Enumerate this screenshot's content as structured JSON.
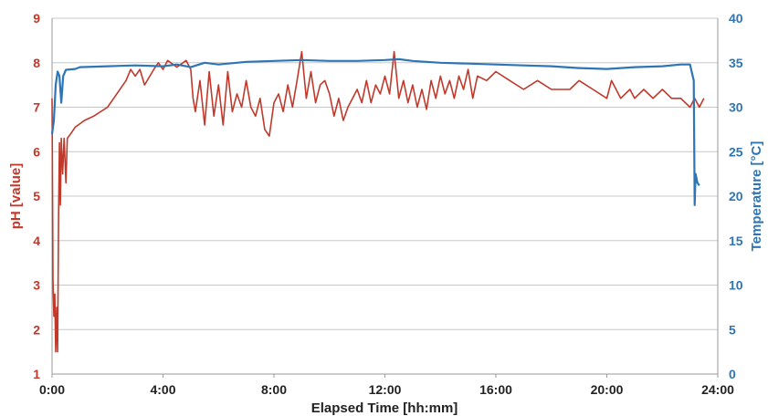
{
  "chart_data": {
    "type": "line",
    "title": "",
    "xlabel": "Elapsed Time [hh:mm]",
    "ylabel_left": "pH [value]",
    "ylabel_right": "Temperature [°C]",
    "x_unit": "hh:mm",
    "xlim": [
      "0:00",
      "24:00"
    ],
    "ylim_left": [
      1,
      9
    ],
    "ylim_right": [
      0,
      40
    ],
    "x_ticks": [
      "0:00",
      "4:00",
      "8:00",
      "12:00",
      "16:00",
      "20:00",
      "24:00"
    ],
    "y_ticks_left": [
      "1",
      "2",
      "3",
      "4",
      "5",
      "6",
      "7",
      "8",
      "9"
    ],
    "y_ticks_right": [
      "0",
      "5",
      "10",
      "15",
      "20",
      "25",
      "30",
      "35",
      "40"
    ],
    "grid": true,
    "legend": "none",
    "colors": {
      "ph": "#c0392b",
      "temperature": "#2e75b6"
    },
    "series": [
      {
        "axis": "left",
        "color": "#c0392b",
        "points": [
          [
            "0:00",
            7.2
          ],
          [
            "0:02",
            3.1
          ],
          [
            "0:04",
            2.3
          ],
          [
            "0:06",
            2.8
          ],
          [
            "0:08",
            1.5
          ],
          [
            "0:10",
            2.5
          ],
          [
            "0:12",
            1.5
          ],
          [
            "0:14",
            4.5
          ],
          [
            "0:16",
            6.2
          ],
          [
            "0:18",
            4.8
          ],
          [
            "0:20",
            6.3
          ],
          [
            "0:23",
            5.5
          ],
          [
            "0:26",
            6.3
          ],
          [
            "0:30",
            5.3
          ],
          [
            "0:33",
            6.3
          ],
          [
            "0:40",
            6.4
          ],
          [
            "0:50",
            6.55
          ],
          [
            "1:10",
            6.7
          ],
          [
            "1:30",
            6.8
          ],
          [
            "2:00",
            7.0
          ],
          [
            "2:20",
            7.3
          ],
          [
            "2:40",
            7.6
          ],
          [
            "2:50",
            7.85
          ],
          [
            "3:00",
            7.7
          ],
          [
            "3:10",
            7.85
          ],
          [
            "3:20",
            7.5
          ],
          [
            "3:40",
            7.85
          ],
          [
            "3:50",
            8.0
          ],
          [
            "4:00",
            7.85
          ],
          [
            "4:10",
            8.05
          ],
          [
            "4:30",
            7.9
          ],
          [
            "4:50",
            8.05
          ],
          [
            "5:00",
            7.85
          ],
          [
            "5:05",
            7.2
          ],
          [
            "5:10",
            6.9
          ],
          [
            "5:20",
            7.6
          ],
          [
            "5:30",
            6.6
          ],
          [
            "5:40",
            7.8
          ],
          [
            "5:50",
            6.8
          ],
          [
            "6:00",
            7.5
          ],
          [
            "6:10",
            6.6
          ],
          [
            "6:20",
            7.8
          ],
          [
            "6:30",
            6.9
          ],
          [
            "6:40",
            7.3
          ],
          [
            "6:50",
            7.0
          ],
          [
            "7:00",
            7.6
          ],
          [
            "7:10",
            7.0
          ],
          [
            "7:20",
            6.8
          ],
          [
            "7:30",
            7.2
          ],
          [
            "7:40",
            6.5
          ],
          [
            "7:50",
            6.35
          ],
          [
            "8:00",
            7.1
          ],
          [
            "8:10",
            7.3
          ],
          [
            "8:20",
            6.9
          ],
          [
            "8:30",
            7.5
          ],
          [
            "8:40",
            7.0
          ],
          [
            "8:50",
            7.6
          ],
          [
            "9:00",
            8.25
          ],
          [
            "9:10",
            7.2
          ],
          [
            "9:20",
            7.8
          ],
          [
            "9:30",
            7.1
          ],
          [
            "9:40",
            7.5
          ],
          [
            "9:50",
            7.6
          ],
          [
            "10:00",
            7.3
          ],
          [
            "10:10",
            6.8
          ],
          [
            "10:20",
            7.2
          ],
          [
            "10:30",
            6.7
          ],
          [
            "10:40",
            7.0
          ],
          [
            "10:50",
            7.2
          ],
          [
            "11:00",
            7.4
          ],
          [
            "11:10",
            7.1
          ],
          [
            "11:20",
            7.6
          ],
          [
            "11:30",
            7.1
          ],
          [
            "11:40",
            7.5
          ],
          [
            "11:50",
            7.3
          ],
          [
            "12:00",
            7.7
          ],
          [
            "12:10",
            7.3
          ],
          [
            "12:20",
            8.25
          ],
          [
            "12:30",
            7.2
          ],
          [
            "12:40",
            7.6
          ],
          [
            "12:50",
            7.1
          ],
          [
            "13:00",
            7.5
          ],
          [
            "13:10",
            7.0
          ],
          [
            "13:20",
            7.4
          ],
          [
            "13:30",
            6.95
          ],
          [
            "13:40",
            7.6
          ],
          [
            "13:50",
            7.2
          ],
          [
            "14:00",
            7.7
          ],
          [
            "14:10",
            7.3
          ],
          [
            "14:20",
            7.6
          ],
          [
            "14:30",
            7.2
          ],
          [
            "14:40",
            7.7
          ],
          [
            "14:50",
            7.4
          ],
          [
            "15:00",
            7.85
          ],
          [
            "15:10",
            7.2
          ],
          [
            "15:20",
            7.7
          ],
          [
            "15:40",
            7.6
          ],
          [
            "16:00",
            7.8
          ],
          [
            "16:30",
            7.6
          ],
          [
            "17:00",
            7.4
          ],
          [
            "17:30",
            7.6
          ],
          [
            "18:00",
            7.4
          ],
          [
            "18:40",
            7.4
          ],
          [
            "19:00",
            7.6
          ],
          [
            "19:30",
            7.4
          ],
          [
            "20:00",
            7.2
          ],
          [
            "20:10",
            7.6
          ],
          [
            "20:30",
            7.2
          ],
          [
            "20:50",
            7.4
          ],
          [
            "21:00",
            7.2
          ],
          [
            "21:20",
            7.4
          ],
          [
            "21:40",
            7.2
          ],
          [
            "22:00",
            7.4
          ],
          [
            "22:20",
            7.2
          ],
          [
            "22:40",
            7.2
          ],
          [
            "23:00",
            7.0
          ],
          [
            "23:10",
            7.2
          ],
          [
            "23:20",
            7.0
          ],
          [
            "23:30",
            7.2
          ]
        ]
      },
      {
        "axis": "right",
        "color": "#2e75b6",
        "points": [
          [
            "0:00",
            27.0
          ],
          [
            "0:04",
            28.5
          ],
          [
            "0:08",
            32.5
          ],
          [
            "0:12",
            34.0
          ],
          [
            "0:16",
            33.5
          ],
          [
            "0:20",
            30.5
          ],
          [
            "0:24",
            33.5
          ],
          [
            "0:30",
            34.2
          ],
          [
            "0:50",
            34.3
          ],
          [
            "1:00",
            34.5
          ],
          [
            "2:00",
            34.6
          ],
          [
            "3:00",
            34.7
          ],
          [
            "4:00",
            34.6
          ],
          [
            "4:30",
            34.8
          ],
          [
            "5:00",
            34.5
          ],
          [
            "5:30",
            35.0
          ],
          [
            "6:00",
            34.8
          ],
          [
            "7:00",
            35.1
          ],
          [
            "8:00",
            35.2
          ],
          [
            "9:00",
            35.3
          ],
          [
            "10:00",
            35.2
          ],
          [
            "11:00",
            35.2
          ],
          [
            "12:00",
            35.3
          ],
          [
            "12:30",
            35.4
          ],
          [
            "13:00",
            35.2
          ],
          [
            "14:00",
            35.0
          ],
          [
            "15:00",
            34.9
          ],
          [
            "16:00",
            34.8
          ],
          [
            "17:00",
            34.7
          ],
          [
            "18:00",
            34.6
          ],
          [
            "19:00",
            34.4
          ],
          [
            "20:00",
            34.3
          ],
          [
            "21:00",
            34.5
          ],
          [
            "22:00",
            34.6
          ],
          [
            "22:40",
            34.8
          ],
          [
            "23:00",
            34.8
          ],
          [
            "23:08",
            33.0
          ],
          [
            "23:10",
            19.0
          ],
          [
            "23:12",
            22.5
          ],
          [
            "23:16",
            21.5
          ],
          [
            "23:20",
            21.2
          ]
        ]
      }
    ]
  }
}
